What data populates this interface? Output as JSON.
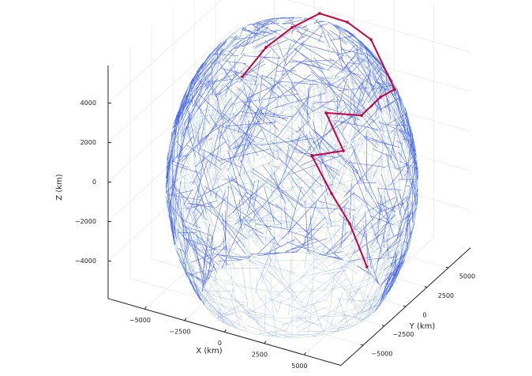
{
  "chart_data": {
    "type": "line3d",
    "xlabel": "X (km)",
    "ylabel": "Y (km)",
    "zlabel": "Z (km)",
    "xlim": [
      -7300,
      7300
    ],
    "ylim": [
      -7600,
      7600
    ],
    "zlim": [
      -5900,
      5900
    ],
    "xticks": [
      {
        "value": -5000,
        "label": "−5000"
      },
      {
        "value": -2500,
        "label": "−2500"
      },
      0,
      2500,
      5000
    ],
    "yticks": [
      {
        "value": -5000,
        "label": "−5000"
      },
      {
        "value": -2500,
        "label": "−2500"
      },
      0,
      2500,
      5000
    ],
    "zticks": [
      {
        "value": -4000,
        "label": "−4000"
      },
      {
        "value": -2000,
        "label": "−2000"
      },
      0,
      2000,
      4000
    ],
    "grid": true,
    "color": "#c8003c",
    "x": [
      -4550,
      -3600,
      -2500,
      -1300,
      430,
      2450,
      5540,
      5180,
      4530,
      3370,
      5000,
      3550,
      5320,
      6460,
      7010
    ],
    "y": [
      3000,
      4000,
      5000,
      6000,
      6000,
      5000,
      2000,
      1000,
      0,
      -2000,
      -3000,
      -4000,
      -5000,
      -5000,
      -4000
    ],
    "z": [
      1820,
      3130,
      4000,
      4600,
      4560,
      4540,
      3910,
      3820,
      3140,
      3780,
      2630,
      2440,
      1330,
      70,
      -2390
    ]
  }
}
